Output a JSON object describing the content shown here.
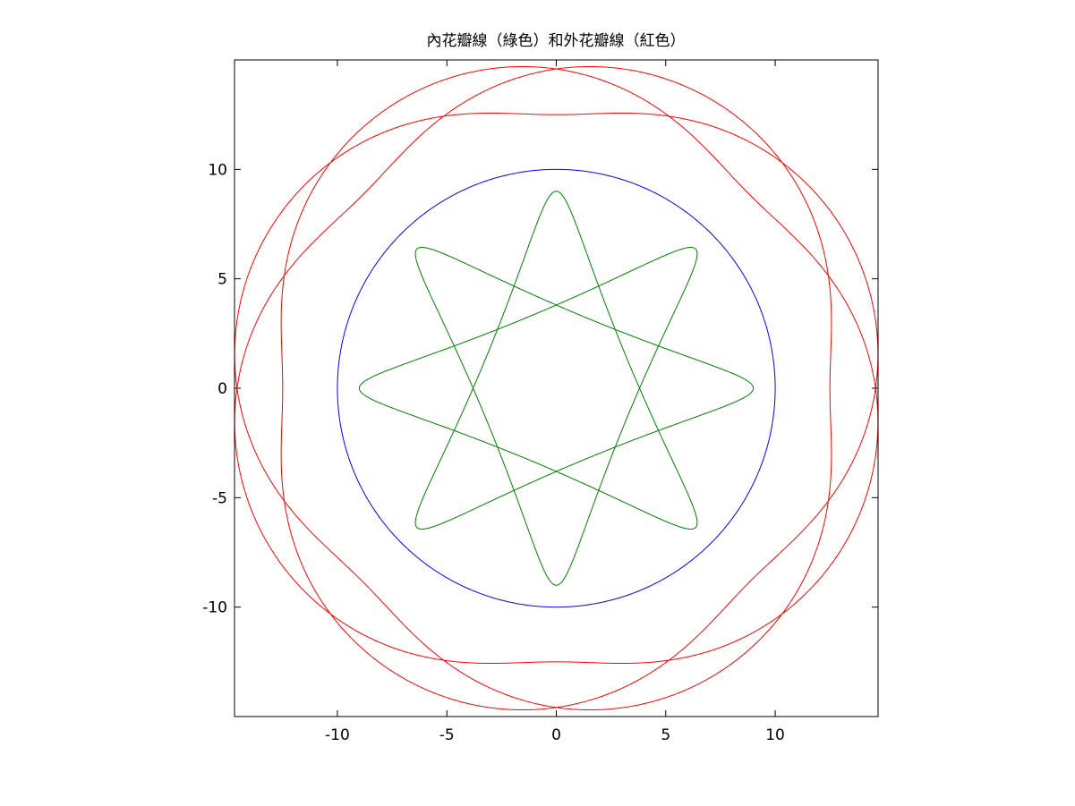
{
  "chart_data": {
    "type": "line",
    "title": "內花瓣線（綠色）和外花瓣線（紅色）",
    "xlabel": "",
    "ylabel": "",
    "xlim": [
      -14.7,
      14.7
    ],
    "ylim": [
      -15.0,
      15.0
    ],
    "aspect": "equal",
    "grid": false,
    "legend": "none",
    "x_ticks": [
      -10,
      -5,
      0,
      5,
      10
    ],
    "x_tick_labels": [
      "-10",
      "-5",
      "0",
      "5",
      "10"
    ],
    "y_ticks": [
      10,
      5,
      0,
      -5,
      -10
    ],
    "y_tick_labels": [
      "10",
      "5",
      "0",
      "-5",
      "-10"
    ],
    "series": [
      {
        "kind": "circle",
        "color": "#0000ff",
        "center": [
          0,
          0
        ],
        "radius": 10
      },
      {
        "kind": "hypotrochoid",
        "color": "#007f00",
        "fixed_radius": 10,
        "rolling_radius": 3.75,
        "pen_distance": 2.75,
        "turns": 3
      },
      {
        "kind": "epitrochoid",
        "color": "#ff0000",
        "fixed_radius": 10,
        "rolling_radius": 3.75,
        "pen_distance": 1.25,
        "turns": 3
      }
    ],
    "colors": {
      "axes": "#000000",
      "background": "#ffffff"
    }
  }
}
